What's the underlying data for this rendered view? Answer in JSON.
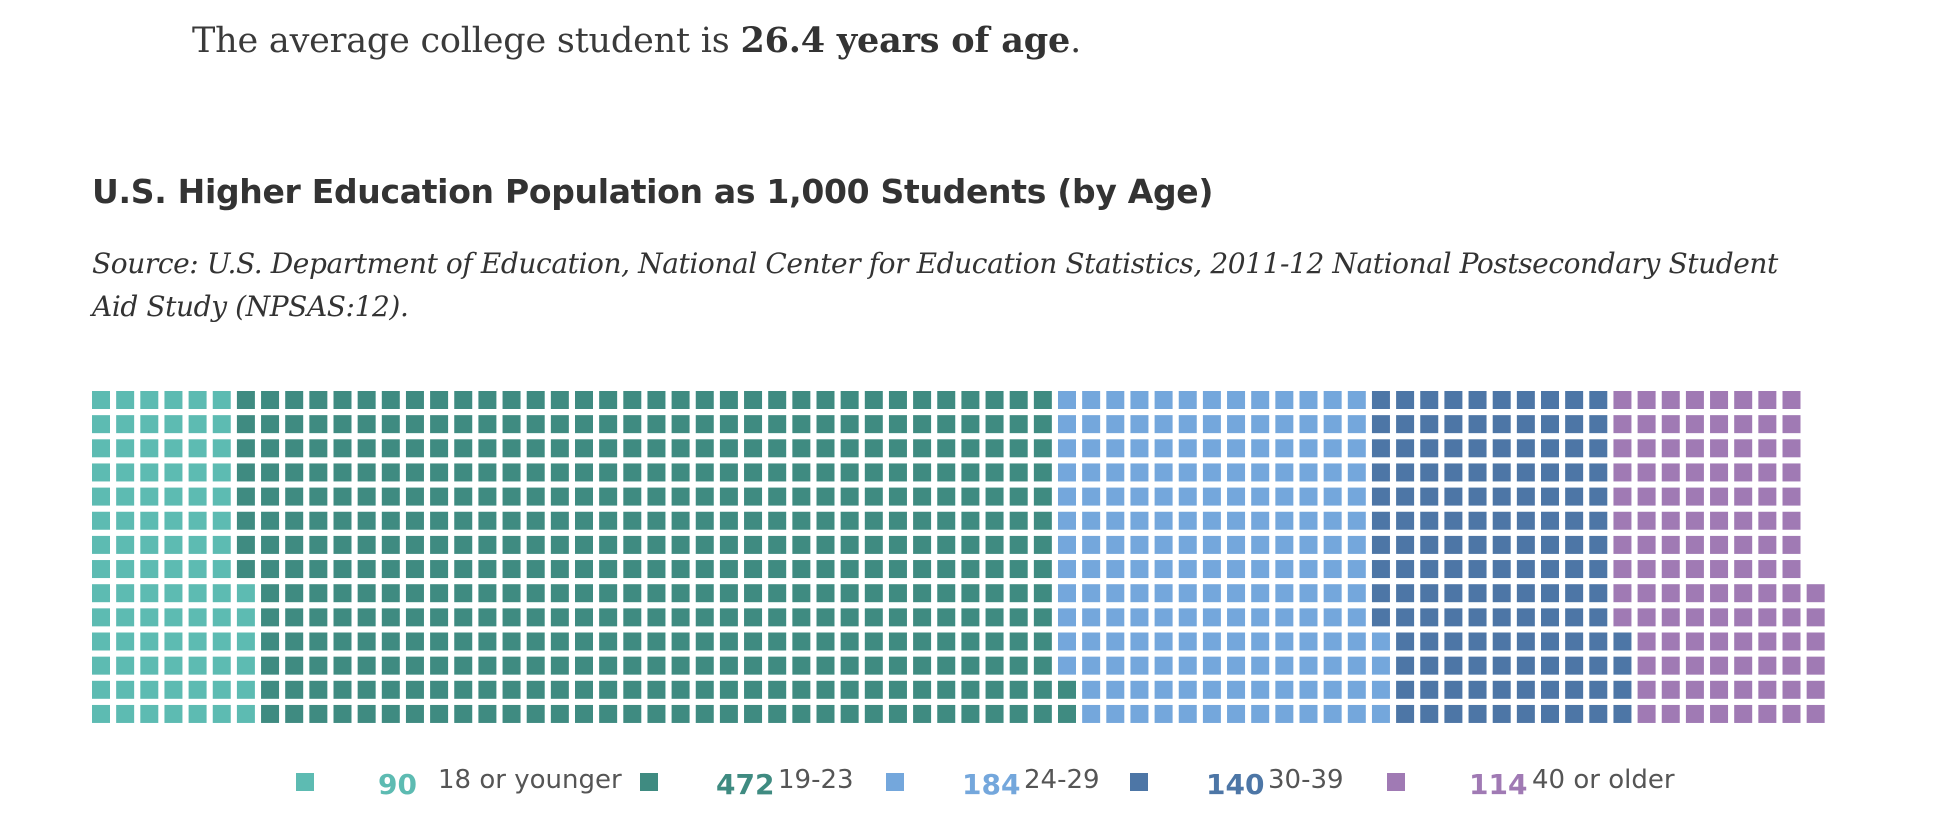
{
  "intro": {
    "prefix": "The average college student is ",
    "highlight": "26.4 years of age",
    "suffix": "."
  },
  "chart_data": {
    "type": "waffle",
    "title": "U.S. Higher Education Population as 1,000 Students (by Age)",
    "source": "Source: U.S. Department of Education, National Center for Education Statistics, 2011-12 National Postsecondary Student Aid Study (NPSAS:12).",
    "total": 1000,
    "units_per_column": 14,
    "categories": [
      {
        "label": "18 or younger",
        "count": 90,
        "count_text": "90",
        "color": "#5dbbb2"
      },
      {
        "label": "19-23",
        "count": 472,
        "count_text": "472",
        "color": "#3f8b81"
      },
      {
        "label": "24-29",
        "count": 184,
        "count_text": "184",
        "color": "#74a7dc"
      },
      {
        "label": "30-39",
        "count": 140,
        "count_text": "140",
        "color": "#4d76a6"
      },
      {
        "label": "40 or older",
        "count": 114,
        "count_text": "114",
        "color": "#a07ab4"
      }
    ]
  }
}
